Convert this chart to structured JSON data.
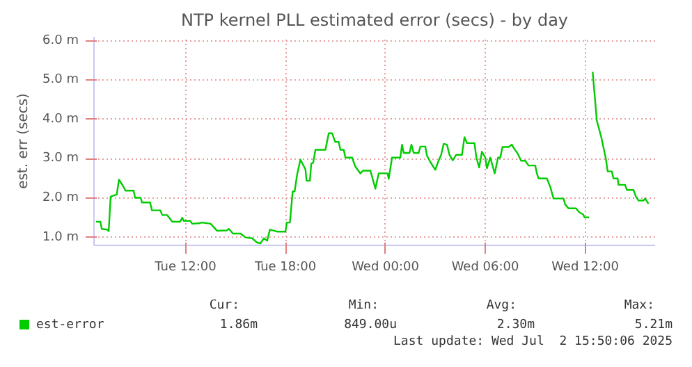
{
  "chart_data": {
    "type": "line",
    "title": "NTP kernel PLL estimated error (secs) - by day",
    "ylabel": "est. err (secs)",
    "xlim": [
      "2025-07-01T06:30",
      "2025-07-02T16:12"
    ],
    "ylim": [
      0.8,
      6.1
    ],
    "xticks": [
      {
        "value": "2025-07-01T12:00",
        "label": "Tue 12:00"
      },
      {
        "value": "2025-07-01T18:00",
        "label": "Tue 18:00"
      },
      {
        "value": "2025-07-02T00:00",
        "label": "Wed 00:00"
      },
      {
        "value": "2025-07-02T06:00",
        "label": "Wed 06:00"
      },
      {
        "value": "2025-07-02T12:00",
        "label": "Wed 12:00"
      }
    ],
    "yticks": [
      {
        "value": 1,
        "label": "1.0 m"
      },
      {
        "value": 2,
        "label": "2.0 m"
      },
      {
        "value": 3,
        "label": "3.0 m"
      },
      {
        "value": 4,
        "label": "4.0 m"
      },
      {
        "value": 5,
        "label": "5.0 m"
      },
      {
        "value": 6,
        "label": "6.0 m"
      }
    ],
    "grid": true,
    "legend": "bottom left",
    "line_style": "solid",
    "marker": "none",
    "x": [
      "2025-07-01T06:37",
      "2025-07-01T06:53",
      "2025-07-01T06:58",
      "2025-07-01T07:18",
      "2025-07-01T07:23",
      "2025-07-01T07:30",
      "2025-07-01T07:52",
      "2025-07-01T08:00",
      "2025-07-01T08:12",
      "2025-07-01T08:24",
      "2025-07-01T08:53",
      "2025-07-01T08:58",
      "2025-07-01T09:18",
      "2025-07-01T09:23",
      "2025-07-01T09:52",
      "2025-07-01T09:59",
      "2025-07-01T10:29",
      "2025-07-01T10:36",
      "2025-07-01T10:54",
      "2025-07-01T11:12",
      "2025-07-01T11:40",
      "2025-07-01T11:48",
      "2025-07-01T11:54",
      "2025-07-01T12:17",
      "2025-07-01T12:24",
      "2025-07-01T12:48",
      "2025-07-01T12:58",
      "2025-07-01T13:30",
      "2025-07-01T13:54",
      "2025-07-01T14:30",
      "2025-07-01T14:36",
      "2025-07-01T14:51",
      "2025-07-01T15:18",
      "2025-07-01T15:36",
      "2025-07-01T16:00",
      "2025-07-01T16:18",
      "2025-07-01T16:30",
      "2025-07-01T16:42",
      "2025-07-01T16:54",
      "2025-07-01T17:04",
      "2025-07-01T17:30",
      "2025-07-01T18:00",
      "2025-07-01T18:05",
      "2025-07-01T18:16",
      "2025-07-01T18:26",
      "2025-07-01T18:33",
      "2025-07-01T18:42",
      "2025-07-01T18:54",
      "2025-07-01T19:12",
      "2025-07-01T19:16",
      "2025-07-01T19:28",
      "2025-07-01T19:33",
      "2025-07-01T19:40",
      "2025-07-01T19:48",
      "2025-07-01T20:24",
      "2025-07-01T20:36",
      "2025-07-01T20:48",
      "2025-07-01T20:59",
      "2025-07-01T21:12",
      "2025-07-01T21:18",
      "2025-07-01T21:30",
      "2025-07-01T21:36",
      "2025-07-01T22:00",
      "2025-07-01T22:12",
      "2025-07-01T22:30",
      "2025-07-01T22:40",
      "2025-07-01T23:06",
      "2025-07-01T23:10",
      "2025-07-01T23:24",
      "2025-07-01T23:36",
      "2025-07-02T00:08",
      "2025-07-02T00:12",
      "2025-07-02T00:24",
      "2025-07-02T00:54",
      "2025-07-02T01:00",
      "2025-07-02T01:06",
      "2025-07-02T01:27",
      "2025-07-02T01:34",
      "2025-07-02T01:42",
      "2025-07-02T02:00",
      "2025-07-02T02:06",
      "2025-07-02T02:24",
      "2025-07-02T02:30",
      "2025-07-02T02:42",
      "2025-07-02T03:00",
      "2025-07-02T03:10",
      "2025-07-02T03:21",
      "2025-07-02T03:30",
      "2025-07-02T03:42",
      "2025-07-02T03:51",
      "2025-07-02T04:03",
      "2025-07-02T04:15",
      "2025-07-02T04:36",
      "2025-07-02T04:45",
      "2025-07-02T04:54",
      "2025-07-02T05:21",
      "2025-07-02T05:28",
      "2025-07-02T05:38",
      "2025-07-02T05:48",
      "2025-07-02T06:00",
      "2025-07-02T06:06",
      "2025-07-02T06:18",
      "2025-07-02T06:34",
      "2025-07-02T06:46",
      "2025-07-02T06:54",
      "2025-07-02T07:02",
      "2025-07-02T07:24",
      "2025-07-02T07:36",
      "2025-07-02T07:42",
      "2025-07-02T07:57",
      "2025-07-02T08:09",
      "2025-07-02T08:24",
      "2025-07-02T08:36",
      "2025-07-02T09:00",
      "2025-07-02T09:06",
      "2025-07-02T09:12",
      "2025-07-02T09:42",
      "2025-07-02T09:54",
      "2025-07-02T10:06",
      "2025-07-02T10:42",
      "2025-07-02T10:48",
      "2025-07-02T11:00",
      "2025-07-02T11:27",
      "2025-07-02T11:39",
      "2025-07-02T11:52",
      "2025-07-02T11:58",
      "2025-07-02T12:14",
      "2025-07-02T12:21",
      "2025-07-02T12:27",
      "2025-07-02T12:42",
      "2025-07-02T12:59",
      "2025-07-02T13:15",
      "2025-07-02T13:21",
      "2025-07-02T13:36",
      "2025-07-02T13:42",
      "2025-07-02T13:57",
      "2025-07-02T14:00",
      "2025-07-02T14:24",
      "2025-07-02T14:30",
      "2025-07-02T14:54",
      "2025-07-02T15:03",
      "2025-07-02T15:12",
      "2025-07-02T15:30",
      "2025-07-02T15:36",
      "2025-07-02T15:48"
    ],
    "series": [
      {
        "name": "est-error",
        "color": "#00cc00",
        "values": [
          1.4,
          1.4,
          1.22,
          1.2,
          1.16,
          2.04,
          2.09,
          2.47,
          2.34,
          2.19,
          2.19,
          2.01,
          2.01,
          1.89,
          1.89,
          1.69,
          1.69,
          1.57,
          1.57,
          1.4,
          1.4,
          1.5,
          1.42,
          1.42,
          1.35,
          1.36,
          1.38,
          1.35,
          1.17,
          1.18,
          1.22,
          1.1,
          1.1,
          1.0,
          0.98,
          0.87,
          0.85,
          0.98,
          0.92,
          1.2,
          1.15,
          1.15,
          1.38,
          1.38,
          2.17,
          2.17,
          2.6,
          2.98,
          2.73,
          2.44,
          2.44,
          2.88,
          2.9,
          3.23,
          3.23,
          3.65,
          3.65,
          3.43,
          3.43,
          3.23,
          3.23,
          3.03,
          3.03,
          2.8,
          2.63,
          2.7,
          2.7,
          2.6,
          2.24,
          2.63,
          2.63,
          2.49,
          3.03,
          3.03,
          3.36,
          3.15,
          3.15,
          3.36,
          3.15,
          3.15,
          3.31,
          3.31,
          3.08,
          2.92,
          2.72,
          2.92,
          3.1,
          3.38,
          3.36,
          3.1,
          2.96,
          3.1,
          3.1,
          3.55,
          3.4,
          3.4,
          3.03,
          2.78,
          3.18,
          3.03,
          2.76,
          3.03,
          2.63,
          3.03,
          3.03,
          3.3,
          3.3,
          3.36,
          3.28,
          3.13,
          2.95,
          2.95,
          2.83,
          2.83,
          2.63,
          2.5,
          2.5,
          2.29,
          1.99,
          1.99,
          1.84,
          1.74,
          1.74,
          1.64,
          1.59,
          1.51,
          1.51,
          null,
          5.21,
          3.97,
          3.52,
          2.98,
          2.68,
          2.68,
          2.5,
          2.5,
          2.34,
          2.34,
          2.21,
          2.21,
          2.04,
          1.94,
          1.94,
          1.99,
          1.86
        ]
      }
    ],
    "annotations": [
      "Cur:",
      "1.86m",
      "Min:",
      "849.00u",
      "Avg:",
      "2.30m",
      "Max:",
      "5.21m",
      "Last update: Wed Jul  2 15:50:06 2025"
    ]
  }
}
